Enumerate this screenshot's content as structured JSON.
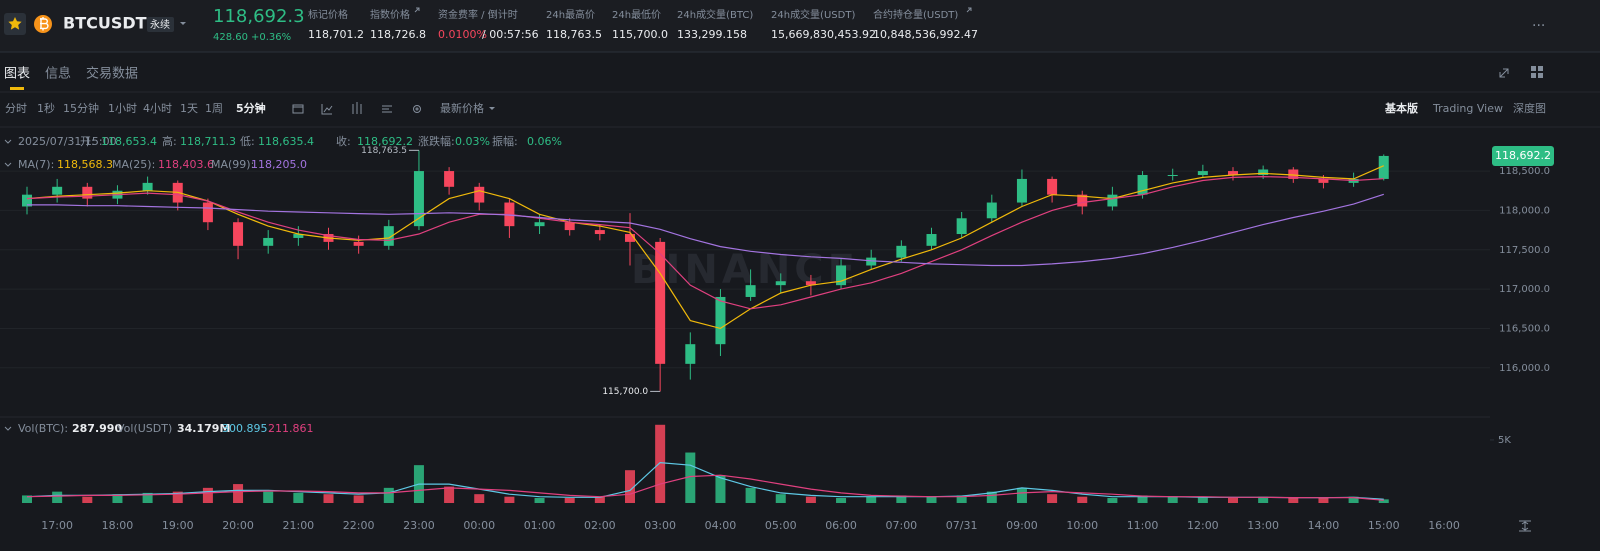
{
  "header": {
    "symbol": "BTCUSDT",
    "contract": "永续",
    "price": "118,692.3",
    "change": "428.60",
    "change_pct": "+0.36%",
    "stats": [
      {
        "label": "标记价格",
        "value": "118,701.2"
      },
      {
        "label": "指数价格",
        "value": "118,726.8"
      },
      {
        "label": "资金费率 / 倒计时",
        "value": "0.0100%",
        "value2": "/ 00:57:56"
      },
      {
        "label": "24h最高价",
        "value": "118,763.5"
      },
      {
        "label": "24h最低价",
        "value": "115,700.0"
      },
      {
        "label": "24h成交量(BTC)",
        "value": "133,299.158"
      },
      {
        "label": "24h成交量(USDT)",
        "value": "15,669,830,453.92"
      },
      {
        "label": "合约持仓量(USDT)",
        "value": "10,848,536,992.47"
      }
    ]
  },
  "tabs": [
    "图表",
    "信息",
    "交易数据"
  ],
  "intervals": [
    "分时",
    "1秒",
    "15分钟",
    "1小时",
    "4小时",
    "1天",
    "1周",
    "5分钟"
  ],
  "price_type": "最新价格",
  "views": [
    "基本版",
    "Trading View",
    "深度图"
  ],
  "ohlc_bar": {
    "datetime": "2025/07/31 15:00",
    "items": [
      {
        "label": "开:",
        "value": "118,653.4"
      },
      {
        "label": "高:",
        "value": "118,711.3"
      },
      {
        "label": "低:",
        "value": "118,635.4"
      },
      {
        "label": "收:",
        "value": "118,692.2"
      },
      {
        "label": "涨跌幅:",
        "value": "0.03%"
      },
      {
        "label": "振幅:",
        "value": "0.06%"
      }
    ]
  },
  "chart_data": {
    "type": "candlestick",
    "watermark": "BINANCE",
    "categories": [
      null,
      "17:00",
      null,
      "18:00",
      null,
      "19:00",
      null,
      "20:00",
      null,
      "21:00",
      null,
      "22:00",
      null,
      "23:00",
      null,
      "00:00",
      null,
      "01:00",
      null,
      "02:00",
      null,
      "03:00",
      null,
      "04:00",
      null,
      "05:00",
      null,
      "06:00",
      null,
      "07:00",
      null,
      "07/31",
      null,
      "09:00",
      null,
      "10:00",
      null,
      "11:00",
      null,
      "12:00",
      null,
      "13:00",
      null,
      "14:00",
      null,
      "15:00",
      null,
      "16:00"
    ],
    "open": [
      118050,
      118200,
      118300,
      118150,
      118250,
      118350,
      118100,
      117850,
      117550,
      117650,
      117700,
      117600,
      117550,
      117800,
      118500,
      118300,
      118100,
      117800,
      117850,
      117750,
      117700,
      117600,
      116050,
      116300,
      116900,
      117050,
      117100,
      117050,
      117300,
      117400,
      117550,
      117700,
      117900,
      118100,
      118400,
      118200,
      118050,
      118200,
      118450,
      118450,
      118500,
      118450,
      118520,
      118400,
      118350,
      118400,
      null,
      null
    ],
    "high": [
      118300,
      118400,
      118350,
      118320,
      118430,
      118380,
      118150,
      117900,
      117750,
      117800,
      117780,
      117680,
      117880,
      118763.5,
      118550,
      118350,
      118150,
      117950,
      117900,
      117820,
      117966,
      117650,
      116450,
      117000,
      117250,
      117200,
      117180,
      117380,
      117500,
      117620,
      117780,
      117980,
      118200,
      118520,
      118430,
      118250,
      118300,
      118500,
      118530,
      118580,
      118550,
      118570,
      118550,
      118450,
      118480,
      118711.3,
      null,
      null
    ],
    "low": [
      117950,
      118100,
      118050,
      118080,
      118200,
      118000,
      117750,
      117380,
      117450,
      117550,
      117500,
      117450,
      117500,
      117750,
      118200,
      118000,
      117650,
      117700,
      117680,
      117620,
      117300,
      115700,
      115850,
      116150,
      116850,
      116950,
      116920,
      117000,
      117250,
      117350,
      117500,
      117650,
      117850,
      118050,
      118100,
      117950,
      118000,
      118150,
      118380,
      118420,
      118380,
      118400,
      118350,
      118280,
      118300,
      118380,
      null,
      null
    ],
    "close": [
      118200,
      118300,
      118150,
      118250,
      118350,
      118100,
      117850,
      117550,
      117650,
      117700,
      117600,
      117550,
      117800,
      118500,
      118300,
      118100,
      117800,
      117850,
      117750,
      117700,
      117600,
      116050,
      116300,
      116900,
      117050,
      117100,
      117050,
      117300,
      117400,
      117550,
      117700,
      117900,
      118100,
      118400,
      118200,
      118050,
      118200,
      118450,
      118450,
      118500,
      118450,
      118520,
      118400,
      118350,
      118400,
      118692.2,
      null,
      null
    ],
    "up_color": "#2ebd85",
    "down_color": "#f6465d",
    "ylim": [
      115400,
      119060
    ],
    "yticks": [
      {
        "value": 116000,
        "label": "116,000.0"
      },
      {
        "value": 116500,
        "label": "116,500.0"
      },
      {
        "value": 117000,
        "label": "117,000.0"
      },
      {
        "value": 117500,
        "label": "117,500.0"
      },
      {
        "value": 118000,
        "label": "118,000.0"
      },
      {
        "value": 118500,
        "label": "118,500.0"
      }
    ],
    "grid": true,
    "last_price_label": "118,692.2",
    "max_label": "118,763.5",
    "min_label": "115,700.0",
    "series": [
      {
        "name": "MA(7):",
        "color": "#f0b90b",
        "value_label": "118,568.3",
        "values": [
          118150,
          118180,
          118200,
          118220,
          118250,
          118230,
          118120,
          117950,
          117800,
          117700,
          117650,
          117620,
          117650,
          117900,
          118150,
          118250,
          118150,
          117950,
          117850,
          117800,
          117720,
          117200,
          116600,
          116500,
          116750,
          116950,
          117050,
          117100,
          117250,
          117380,
          117500,
          117650,
          117850,
          118050,
          118200,
          118180,
          118150,
          118250,
          118350,
          118420,
          118450,
          118470,
          118450,
          118420,
          118400,
          118568.3,
          null,
          null
        ]
      },
      {
        "name": "MA(25):",
        "color": "#e0407f",
        "value_label": "118,403.6",
        "values": [
          118150,
          118170,
          118180,
          118200,
          118220,
          118200,
          118120,
          117980,
          117850,
          117750,
          117680,
          117630,
          117620,
          117700,
          117850,
          117950,
          117950,
          117900,
          117850,
          117820,
          117780,
          117450,
          117050,
          116850,
          116750,
          116800,
          116900,
          117000,
          117080,
          117200,
          117350,
          117500,
          117680,
          117850,
          118000,
          118100,
          118150,
          118200,
          118300,
          118380,
          118420,
          118430,
          118420,
          118400,
          118380,
          118403.6,
          null,
          null
        ]
      },
      {
        "name": "MA(99):",
        "color": "#a374e0",
        "value_label": "118,205.0",
        "values": [
          118070,
          118070,
          118060,
          118060,
          118050,
          118040,
          118030,
          118010,
          117990,
          117980,
          117970,
          117960,
          117950,
          117960,
          117970,
          117960,
          117940,
          117910,
          117880,
          117860,
          117840,
          117760,
          117640,
          117540,
          117480,
          117440,
          117410,
          117390,
          117360,
          117340,
          117320,
          117310,
          117300,
          117300,
          117320,
          117350,
          117390,
          117450,
          117530,
          117620,
          117720,
          117820,
          117910,
          117990,
          118080,
          118205,
          null,
          null
        ]
      }
    ],
    "volume": {
      "title": "Vol(BTC):",
      "value_label": "287.990",
      "usdt_title": "Vol(USDT)",
      "usdt_label": "34.179M",
      "ylim": [
        0,
        6500
      ],
      "yticks": [
        {
          "value": 5000,
          "label": "5K"
        }
      ],
      "values": [
        600,
        900,
        500,
        700,
        800,
        900,
        1200,
        1500,
        900,
        800,
        700,
        600,
        1200,
        3000,
        1300,
        700,
        500,
        400,
        400,
        500,
        2600,
        6200,
        4000,
        2200,
        1200,
        700,
        500,
        400,
        500,
        600,
        500,
        600,
        900,
        1200,
        700,
        500,
        400,
        600,
        500,
        500,
        400,
        500,
        400,
        400,
        500,
        287.99,
        null,
        null
      ],
      "series": [
        {
          "color": "#5ec8e5",
          "value_label": "300.895",
          "values": [
            500,
            600,
            600,
            650,
            700,
            750,
            900,
            1000,
            1000,
            900,
            800,
            700,
            800,
            1500,
            1500,
            1100,
            700,
            500,
            450,
            450,
            1000,
            3200,
            3000,
            2000,
            1300,
            800,
            600,
            500,
            500,
            500,
            500,
            550,
            800,
            1200,
            1000,
            700,
            500,
            500,
            500,
            450,
            450,
            450,
            420,
            420,
            450,
            300.895,
            null,
            null
          ]
        },
        {
          "color": "#e0407f",
          "value_label": "211.861",
          "values": [
            500,
            550,
            600,
            600,
            650,
            700,
            800,
            900,
            950,
            950,
            900,
            800,
            800,
            1000,
            1200,
            1100,
            1000,
            800,
            600,
            500,
            700,
            1500,
            2100,
            2200,
            1900,
            1500,
            1100,
            800,
            600,
            550,
            500,
            500,
            600,
            800,
            900,
            800,
            700,
            550,
            500,
            500,
            450,
            450,
            430,
            420,
            430,
            211.861,
            null,
            null
          ]
        }
      ]
    }
  }
}
